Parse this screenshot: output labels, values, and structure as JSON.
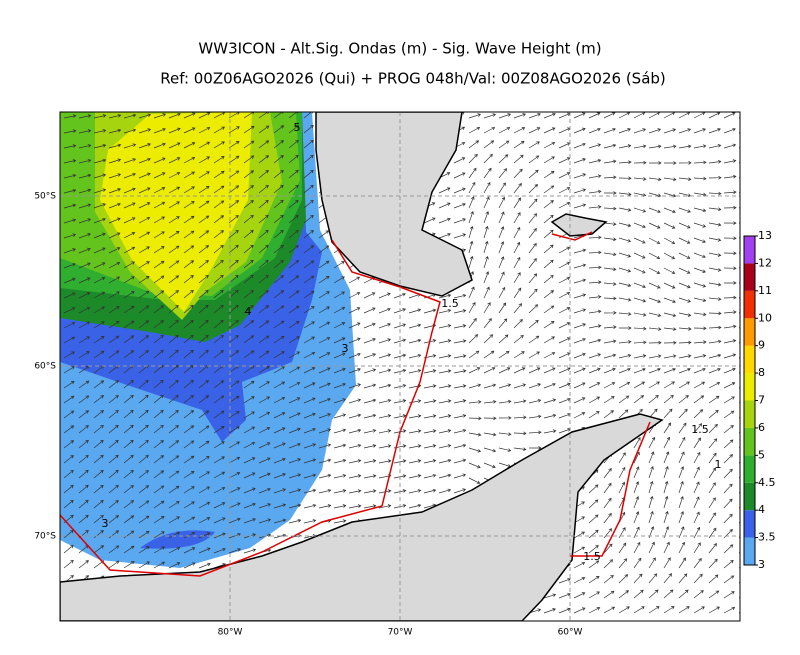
{
  "title": "WW3ICON - Alt.Sig. Ondas (m) - Sig. Wave Height (m)",
  "subtitle": "Ref: 00Z06AGO2026 (Qui) + PROG 048h/Val: 00Z08AGO2026 (Sáb)",
  "map": {
    "lat_labels": [
      "50°S",
      "60°S",
      "70°S"
    ],
    "lon_labels": [
      "80°W",
      "70°W",
      "60°W"
    ],
    "contour_labels": [
      "5",
      "4",
      "3",
      "3",
      "1.5",
      "1.5",
      "1",
      "1.5"
    ]
  },
  "colorbar": {
    "ticks": [
      3,
      3.5,
      4,
      4.5,
      5,
      6,
      7,
      8,
      9,
      10,
      11,
      12,
      13
    ],
    "colors": [
      "#5aa8f0",
      "#3a62e6",
      "#1c8a28",
      "#2fae2f",
      "#64c41e",
      "#a6d40e",
      "#ecec00",
      "#ffd800",
      "#ff9a00",
      "#f03000",
      "#a80018",
      "#a040f0"
    ]
  }
}
